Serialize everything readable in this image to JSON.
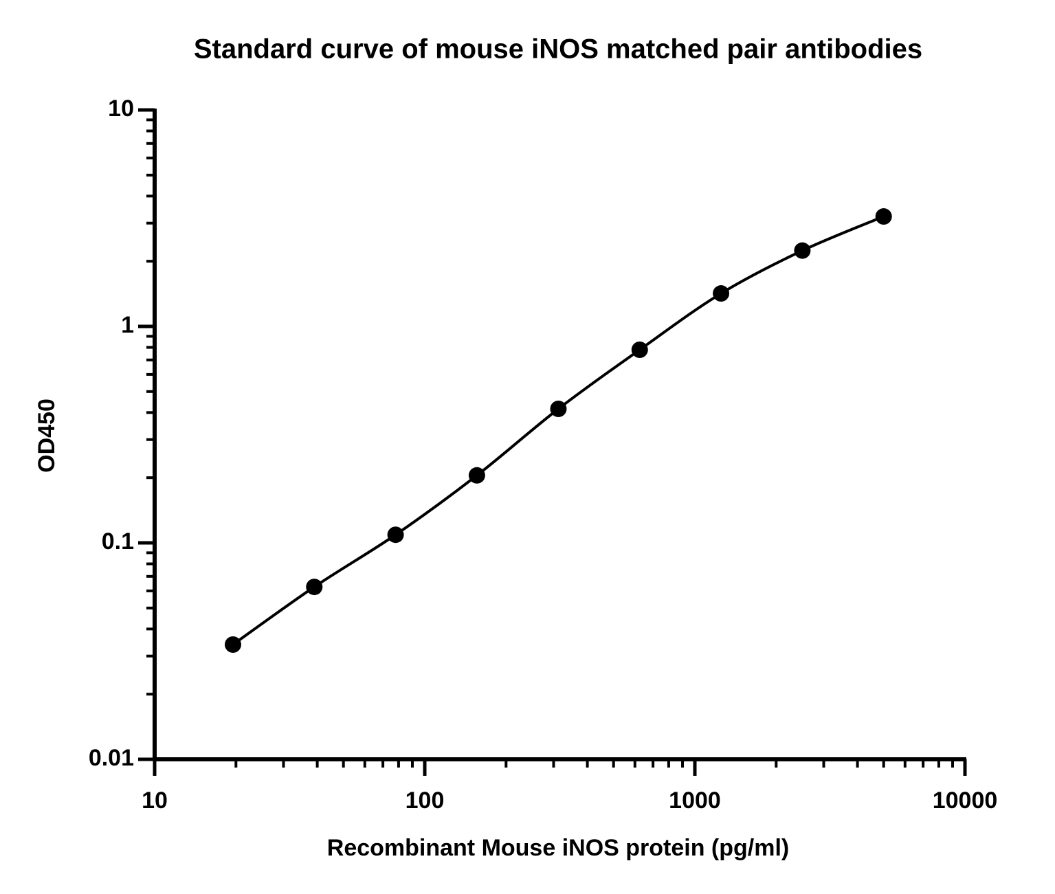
{
  "chart_data": {
    "type": "scatter",
    "title": "Standard curve of mouse iNOS matched pair antibodies",
    "x_label": "Recombinant Mouse iNOS protein (pg/ml)",
    "y_label": "OD450",
    "x": [
      19.5,
      39,
      78,
      156,
      312.5,
      625,
      1250,
      2500,
      5000
    ],
    "values": [
      0.0339,
      0.0626,
      0.109,
      0.205,
      0.416,
      0.78,
      1.42,
      2.24,
      3.22
    ],
    "color": "#000000",
    "fit_curve": true,
    "xscale": "log",
    "yscale": "log",
    "xlim": [
      10,
      10000
    ],
    "ylim": [
      0.01,
      10
    ],
    "xticks": [
      10,
      100,
      1000,
      10000
    ],
    "yticks": [
      0.01,
      0.1,
      1,
      10
    ]
  }
}
